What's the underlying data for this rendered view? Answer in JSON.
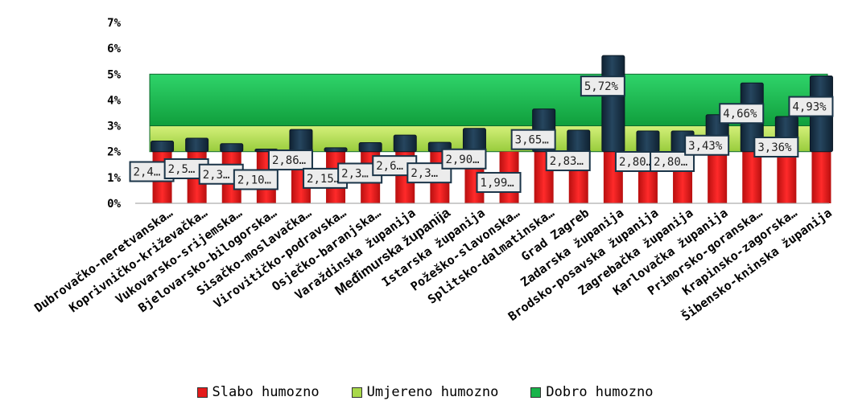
{
  "chart_data": {
    "type": "bar",
    "categories": [
      "Dubrovačko-neretvanska…",
      "Koprivničko-križevačka…",
      "Vukovarsko-srijemska…",
      "Bjelovarsko-bilogorska…",
      "Sisačko-moslavačka…",
      "Virovitičko-podravska…",
      "Osječko-baranjska…",
      "Varaždinska županija",
      "Međimurska županija",
      "Istarska županija",
      "Požeško-slavonska…",
      "Splitsko-dalmatinska…",
      "Grad Zagreb",
      "Zadarska županija",
      "Brodsko-posavska županija",
      "Zagrebačka županija",
      "Karlovačka županija",
      "Primorsko-goranska…",
      "Krapinsko-zagorska…",
      "Šibensko-kninska županija"
    ],
    "values": [
      2.41,
      2.52,
      2.31,
      2.1,
      2.86,
      2.15,
      2.35,
      2.64,
      2.36,
      2.9,
      1.99,
      3.65,
      2.83,
      5.72,
      2.8,
      2.8,
      3.43,
      4.66,
      3.36,
      4.93
    ],
    "data_labels": [
      "2,4…",
      "2,5…",
      "2,3…",
      "2,10…",
      "2,86…",
      "2,15…",
      "2,3…",
      "2,6…",
      "2,3…",
      "2,90…",
      "1,99…",
      "3,65…",
      "2,83…",
      "5,72%",
      "2,80…",
      "2,80…",
      "3,43%",
      "4,66%",
      "3,36%",
      "4,93%"
    ],
    "ylim": [
      0,
      7
    ],
    "yticks": [
      "0%",
      "1%",
      "2%",
      "3%",
      "4%",
      "5%",
      "6%",
      "7%"
    ],
    "bands": [
      {
        "name": "Slabo humozno",
        "from": 0,
        "to": 2,
        "color": "#e41a1a"
      },
      {
        "name": "Umjereno humozno",
        "from": 2,
        "to": 3,
        "color": "#a8d84a"
      },
      {
        "name": "Dobro humozno",
        "from": 3,
        "to": 5,
        "color": "#19b34a"
      }
    ],
    "bar_color": "#1a3448",
    "grid": false,
    "legend_position": "bottom"
  },
  "legend": {
    "items": [
      {
        "label": "Slabo humozno",
        "color": "#e41a1a"
      },
      {
        "label": "Umjereno humozno",
        "color": "#a8d84a"
      },
      {
        "label": "Dobro humozno",
        "color": "#19b34a"
      }
    ]
  }
}
